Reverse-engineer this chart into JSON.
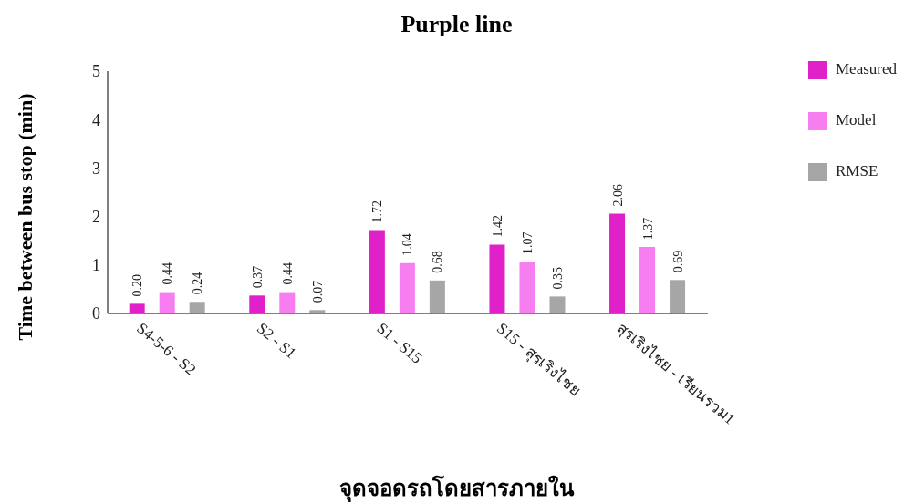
{
  "chart_data": {
    "type": "bar",
    "title": "Purple line",
    "xlabel": "จุดจอดรถโดยสารภายใน",
    "ylabel": "Time between bus stop (min)",
    "categories": [
      "S4-5-6 - S2",
      "S2 - S1",
      "S1 - S15",
      "S15 - สุรเริงไชย",
      "สุรเริงไชย - เรียนรวม1"
    ],
    "series": [
      {
        "name": "Measured",
        "color": "#e020c8",
        "values": [
          0.2,
          0.37,
          1.72,
          1.42,
          2.06
        ],
        "value_labels": [
          "0.20",
          "0.37",
          "1.72",
          "1.42",
          "2.06"
        ]
      },
      {
        "name": "Model",
        "color": "#f77ef0",
        "values": [
          0.44,
          0.44,
          1.04,
          1.07,
          1.37
        ],
        "value_labels": [
          "0.44",
          "0.44",
          "1.04",
          "1.07",
          "1.37"
        ]
      },
      {
        "name": "RMSE",
        "color": "#a6a6a6",
        "values": [
          0.24,
          0.07,
          0.68,
          0.35,
          0.69
        ],
        "value_labels": [
          "0.24",
          "0.07",
          "0.68",
          "0.35",
          "0.69"
        ]
      }
    ],
    "ylim": [
      0,
      5
    ],
    "yticks": [
      0,
      1,
      2,
      3,
      4,
      5
    ],
    "grid": false,
    "legend": "top right"
  }
}
